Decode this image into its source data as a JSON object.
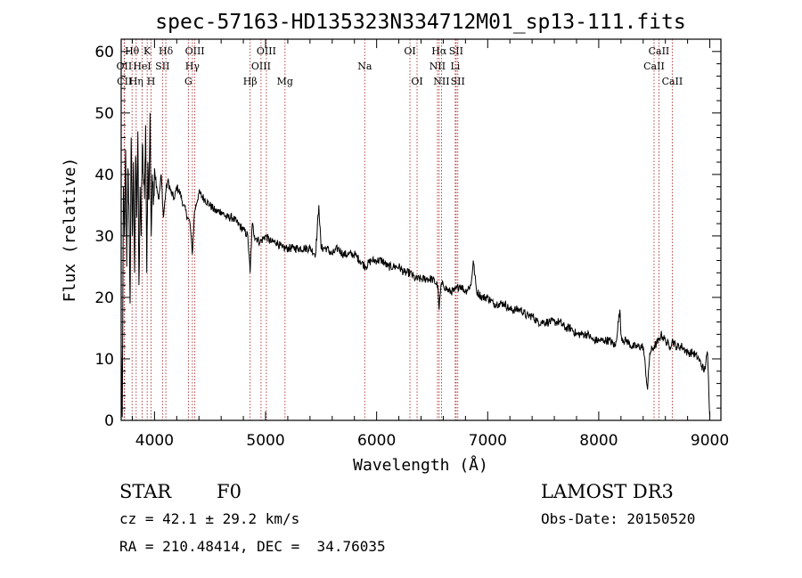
{
  "chart_data": {
    "type": "line",
    "title": "spec-57163-HD135323N334712M01_sp13-111.fits",
    "xlabel": "Wavelength (Å)",
    "ylabel": "Flux (relative)",
    "xlim": [
      3700,
      9100
    ],
    "ylim": [
      0,
      62
    ],
    "xticks": [
      4000,
      5000,
      6000,
      7000,
      8000,
      9000
    ],
    "xtick_labels": [
      "4000",
      "5000",
      "6000",
      "7000",
      "8000",
      "9000"
    ],
    "yticks": [
      0,
      10,
      20,
      30,
      40,
      50,
      60
    ],
    "ytick_labels": [
      "0",
      "10",
      "20",
      "30",
      "40",
      "50",
      "60"
    ],
    "series": [
      {
        "name": "spectrum",
        "color": "#000000",
        "x": [
          3700,
          3710,
          3720,
          3730,
          3740,
          3750,
          3760,
          3770,
          3780,
          3790,
          3800,
          3810,
          3820,
          3830,
          3840,
          3850,
          3860,
          3870,
          3880,
          3890,
          3900,
          3910,
          3920,
          3930,
          3940,
          3950,
          3960,
          3970,
          3980,
          3990,
          4000,
          4020,
          4040,
          4060,
          4080,
          4100,
          4120,
          4150,
          4180,
          4200,
          4230,
          4260,
          4300,
          4320,
          4340,
          4360,
          4400,
          4450,
          4500,
          4550,
          4600,
          4650,
          4700,
          4750,
          4800,
          4840,
          4861,
          4880,
          4900,
          4950,
          5000,
          5050,
          5100,
          5150,
          5200,
          5250,
          5300,
          5350,
          5400,
          5450,
          5480,
          5500,
          5550,
          5600,
          5650,
          5700,
          5750,
          5800,
          5850,
          5900,
          5950,
          6000,
          6050,
          6100,
          6150,
          6200,
          6250,
          6300,
          6350,
          6400,
          6450,
          6500,
          6550,
          6563,
          6580,
          6600,
          6650,
          6700,
          6750,
          6800,
          6850,
          6870,
          6900,
          6950,
          7000,
          7050,
          7100,
          7150,
          7200,
          7250,
          7300,
          7350,
          7400,
          7450,
          7500,
          7550,
          7600,
          7650,
          7700,
          7750,
          7800,
          7850,
          7900,
          7950,
          8000,
          8050,
          8100,
          8150,
          8190,
          8200,
          8220,
          8250,
          8300,
          8350,
          8400,
          8440,
          8460,
          8500,
          8542,
          8560,
          8600,
          8640,
          8662,
          8700,
          8750,
          8800,
          8850,
          8900,
          8950,
          8980,
          9000
        ],
        "values": [
          12,
          0.5,
          38,
          30,
          44,
          25,
          41,
          35,
          19,
          46,
          30,
          42,
          24,
          43,
          33,
          47,
          22,
          38,
          30,
          45,
          40,
          36,
          48,
          24,
          42,
          36,
          50,
          30,
          40,
          35,
          41,
          38,
          36,
          40,
          33,
          37,
          39,
          37,
          36,
          38,
          37,
          35,
          33,
          32,
          27,
          34,
          37,
          36,
          35,
          34,
          34,
          33,
          33,
          32,
          31,
          30,
          24,
          32,
          30,
          29,
          30,
          29,
          29,
          28,
          28,
          28,
          28,
          28,
          28,
          27,
          35,
          28,
          28,
          27,
          28,
          27,
          27,
          27,
          26,
          25,
          26,
          26,
          26,
          25,
          25,
          25,
          24,
          24,
          23,
          23,
          23,
          23,
          22,
          18,
          22,
          22,
          21,
          21,
          22,
          21,
          22,
          26,
          21,
          20,
          20,
          19,
          19,
          19,
          18,
          18,
          18,
          17,
          17,
          16,
          16,
          16,
          16,
          16,
          15,
          15,
          14,
          14,
          14,
          13,
          13,
          13,
          13,
          12,
          18,
          14,
          13,
          13,
          12,
          12,
          12,
          5,
          11,
          12,
          13,
          14,
          13,
          12,
          13,
          12,
          12,
          11,
          11,
          10,
          8,
          11,
          0.5
        ]
      }
    ],
    "spectral_lines": [
      {
        "label": "Hθ",
        "x": 3798,
        "row": 0
      },
      {
        "label": "OII",
        "x": 3727,
        "row": 1
      },
      {
        "label": "CII",
        "x": 3730,
        "row": 2
      },
      {
        "label": "K",
        "x": 3934,
        "row": 0
      },
      {
        "label": "HeI",
        "x": 3889,
        "row": 1
      },
      {
        "label": "Hη",
        "x": 3835,
        "row": 2
      },
      {
        "label": "H",
        "x": 3969,
        "row": 2
      },
      {
        "label": "Hδ",
        "x": 4102,
        "row": 0
      },
      {
        "label": "SII",
        "x": 4072,
        "row": 1
      },
      {
        "label": "OIII",
        "x": 4363,
        "row": 0
      },
      {
        "label": "Hγ",
        "x": 4341,
        "row": 1
      },
      {
        "label": "G",
        "x": 4305,
        "row": 2
      },
      {
        "label": "Hβ",
        "x": 4861,
        "row": 2
      },
      {
        "label": "OIII",
        "x": 5007,
        "row": 0
      },
      {
        "label": "OIII",
        "x": 4959,
        "row": 1
      },
      {
        "label": "Mg",
        "x": 5175,
        "row": 2
      },
      {
        "label": "Na",
        "x": 5893,
        "row": 1
      },
      {
        "label": "OI",
        "x": 6300,
        "row": 0
      },
      {
        "label": "OI",
        "x": 6364,
        "row": 2
      },
      {
        "label": "Hα",
        "x": 6563,
        "row": 0
      },
      {
        "label": "SII",
        "x": 6716,
        "row": 0
      },
      {
        "label": "NII",
        "x": 6548,
        "row": 1
      },
      {
        "label": "Li",
        "x": 6708,
        "row": 1
      },
      {
        "label": "NII",
        "x": 6584,
        "row": 2
      },
      {
        "label": "SII",
        "x": 6731,
        "row": 2
      },
      {
        "label": "CaII",
        "x": 8542,
        "row": 0
      },
      {
        "label": "CaII",
        "x": 8498,
        "row": 1
      },
      {
        "label": "CaII",
        "x": 8662,
        "row": 2
      }
    ]
  },
  "info": {
    "object_class": "STAR",
    "subclass": "F0",
    "survey": "LAMOST DR3",
    "cz": "cz = 42.1 ± 29.2 km/s",
    "obs_date": "Obs-Date: 20150520",
    "coords": "RA = 210.48414, DEC =  34.76035"
  },
  "colors": {
    "line_marker": "#b03030",
    "spectrum": "#000000"
  }
}
